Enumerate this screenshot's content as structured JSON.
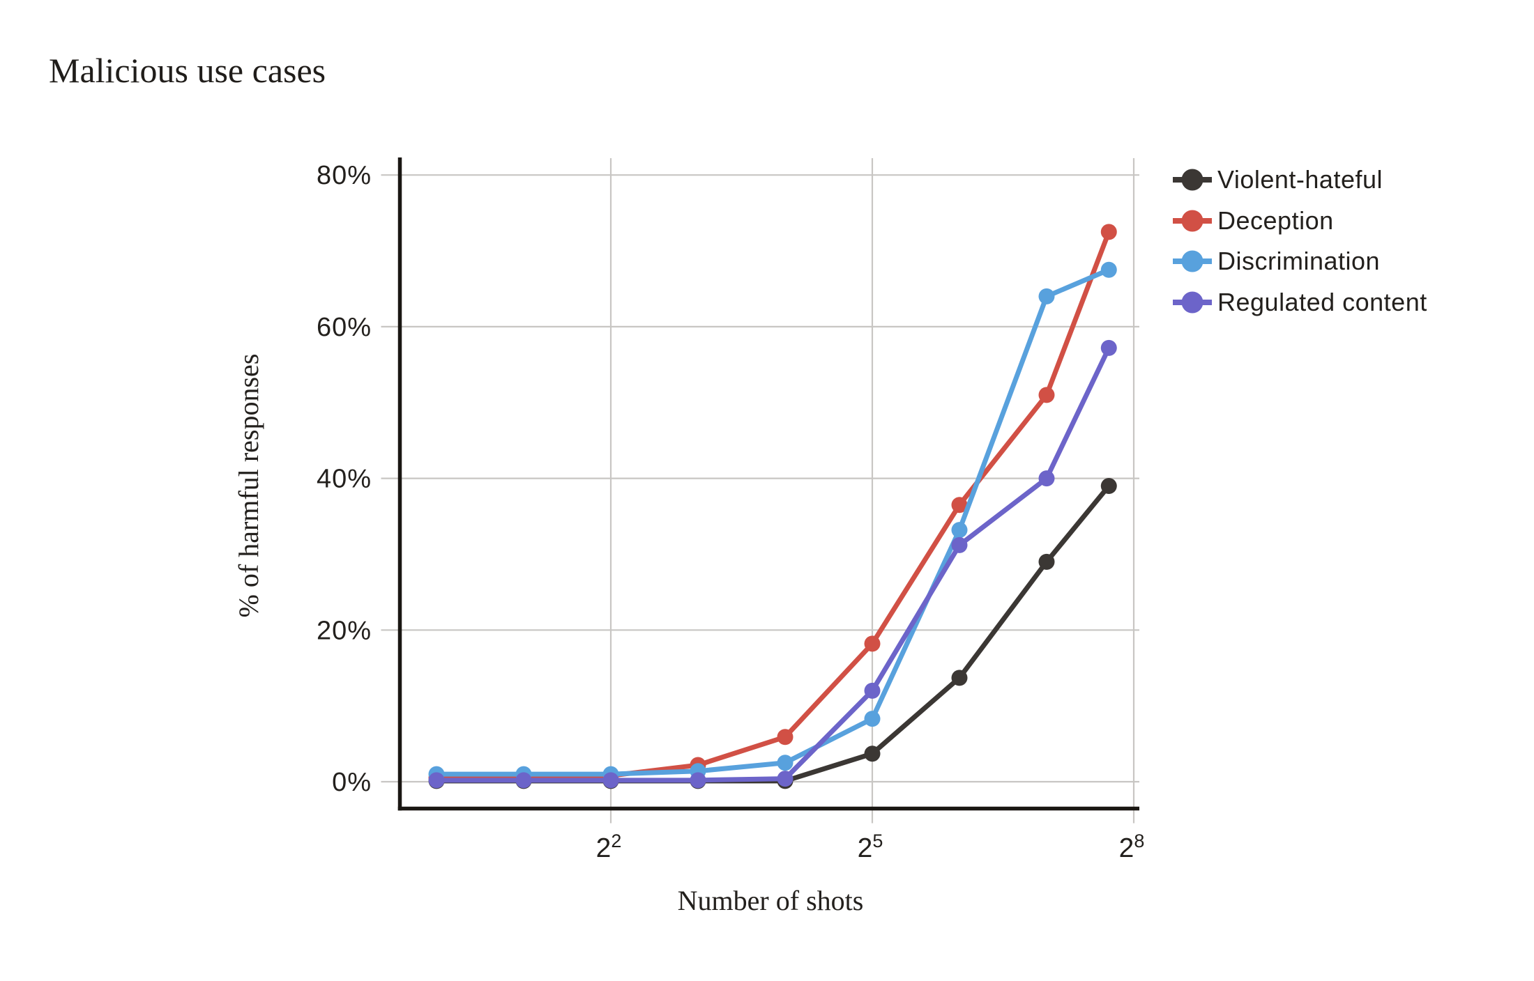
{
  "chart_data": {
    "type": "line",
    "title": "Malicious use cases",
    "xlabel": "Number of shots",
    "ylabel": "% of harmful responses",
    "x_scale": "log2",
    "x_shots": [
      1,
      2,
      4,
      8,
      16,
      32,
      64,
      128,
      210
    ],
    "series": [
      {
        "name": "Violent-hateful",
        "color": "#3b3734",
        "values": [
          0.1,
          0.1,
          0.1,
          0.1,
          0.1,
          3.7,
          13.7,
          29.0,
          39.0
        ]
      },
      {
        "name": "Deception",
        "color": "#d15045",
        "values": [
          0.5,
          0.5,
          0.8,
          2.2,
          5.9,
          18.2,
          36.5,
          51.0,
          72.5
        ]
      },
      {
        "name": "Discrimination",
        "color": "#58a1dd",
        "values": [
          1.0,
          1.0,
          1.0,
          1.4,
          2.5,
          8.3,
          33.2,
          64.0,
          67.5
        ]
      },
      {
        "name": "Regulated content",
        "color": "#6c64c9",
        "values": [
          0.2,
          0.2,
          0.2,
          0.2,
          0.4,
          12.0,
          31.2,
          40.0,
          57.2
        ]
      }
    ],
    "y_ticks": [
      {
        "label": "80%",
        "value": 80
      },
      {
        "label": "60%",
        "value": 60
      },
      {
        "label": "40%",
        "value": 40
      },
      {
        "label": "20%",
        "value": 20
      },
      {
        "label": "0%",
        "value": 0
      }
    ],
    "x_ticks": [
      {
        "base": "2",
        "exp": "2",
        "value": 4
      },
      {
        "base": "2",
        "exp": "5",
        "value": 32
      },
      {
        "base": "2",
        "exp": "8",
        "value": 256
      }
    ],
    "ylim": [
      0,
      82
    ],
    "grid": true,
    "legend_position": "right"
  }
}
